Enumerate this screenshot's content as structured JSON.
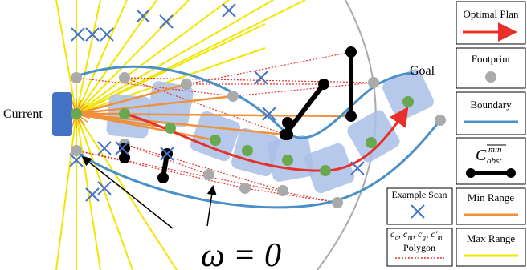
{
  "labels": {
    "current": "Current",
    "goal": "Goal",
    "omega": "ω = 0"
  },
  "legend": {
    "optimal_plan": "Optimal Plan",
    "footprint": "Footprint",
    "boundary": "Boundary",
    "obstacle": {
      "symbol": "C",
      "sup": "min",
      "sub": "obst"
    },
    "example_scan": "Example Scan",
    "min_range": "Min Range",
    "max_range": "Max Range",
    "polygon": {
      "vars": [
        {
          "base": "c",
          "sub": "c"
        },
        {
          "base": "c",
          "sub": "m"
        },
        {
          "base": "c",
          "sub": "g"
        },
        {
          "base": "c′",
          "sub": "m"
        }
      ],
      "sep": ",",
      "label": "Polygon"
    }
  }
}
